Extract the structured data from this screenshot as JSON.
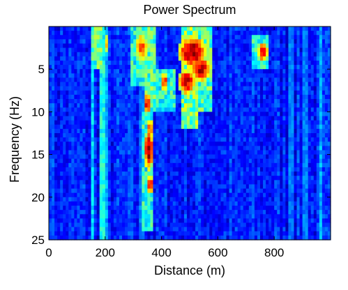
{
  "chart_data": {
    "type": "heatmap",
    "title": "Power Spectrum",
    "xlabel": "Distance (m)",
    "ylabel": "Frequency (Hz)",
    "xlim": [
      0,
      1000
    ],
    "ylim": [
      25,
      0
    ],
    "y_axis_direction": "down",
    "xticks": [
      0,
      200,
      400,
      600,
      800
    ],
    "yticks": [
      5,
      10,
      15,
      20,
      25
    ],
    "colormap": "jet",
    "grid": false,
    "background_level": 0.15,
    "regions": [
      {
        "x": 0,
        "xw": 20,
        "f0": 0,
        "f1": 25,
        "level": 0.2
      },
      {
        "x": 150,
        "xw": 40,
        "f0": 0,
        "f1": 5,
        "level": 0.5
      },
      {
        "x": 290,
        "xw": 60,
        "f0": 0,
        "f1": 7,
        "level": 0.45
      },
      {
        "x": 340,
        "xw": 40,
        "f0": 0,
        "f1": 10,
        "level": 0.5
      },
      {
        "x": 380,
        "xw": 70,
        "f0": 5,
        "f1": 10,
        "level": 0.45
      },
      {
        "x": 470,
        "xw": 60,
        "f0": 0,
        "f1": 12,
        "level": 0.55
      },
      {
        "x": 520,
        "xw": 60,
        "f0": 0,
        "f1": 10,
        "level": 0.5
      },
      {
        "x": 330,
        "xw": 40,
        "f0": 10,
        "f1": 24,
        "level": 0.45
      },
      {
        "x": 720,
        "xw": 60,
        "f0": 1,
        "f1": 5,
        "level": 0.45
      }
    ],
    "hotspots": [
      {
        "x": 510,
        "y": 3,
        "rx": 40,
        "ry": 1.5,
        "level": 1.0
      },
      {
        "x": 490,
        "y": 6.5,
        "rx": 25,
        "ry": 1.2,
        "level": 0.95
      },
      {
        "x": 540,
        "y": 5,
        "rx": 30,
        "ry": 1.2,
        "level": 0.95
      },
      {
        "x": 355,
        "y": 14.5,
        "rx": 12,
        "ry": 2,
        "level": 1.0
      },
      {
        "x": 360,
        "y": 18.5,
        "rx": 10,
        "ry": 0.8,
        "level": 0.95
      },
      {
        "x": 350,
        "y": 9,
        "rx": 12,
        "ry": 1,
        "level": 0.9
      },
      {
        "x": 410,
        "y": 6.5,
        "rx": 12,
        "ry": 0.8,
        "level": 0.85
      },
      {
        "x": 760,
        "y": 3,
        "rx": 15,
        "ry": 1,
        "level": 0.9
      },
      {
        "x": 205,
        "y": 2,
        "rx": 5,
        "ry": 0.8,
        "level": 0.75
      },
      {
        "x": 330,
        "y": 2.5,
        "rx": 20,
        "ry": 1.5,
        "level": 0.8
      },
      {
        "x": 360,
        "y": 12,
        "rx": 8,
        "ry": 1,
        "level": 0.85
      }
    ],
    "vertical_streaks": [
      {
        "x": 155,
        "level": 0.35
      },
      {
        "x": 190,
        "level": 0.4
      },
      {
        "x": 200,
        "level": 0.3
      },
      {
        "x": 330,
        "level": 0.25
      },
      {
        "x": 860,
        "level": 0.25
      },
      {
        "x": 910,
        "level": 0.25
      },
      {
        "x": 965,
        "level": 0.3
      }
    ]
  }
}
